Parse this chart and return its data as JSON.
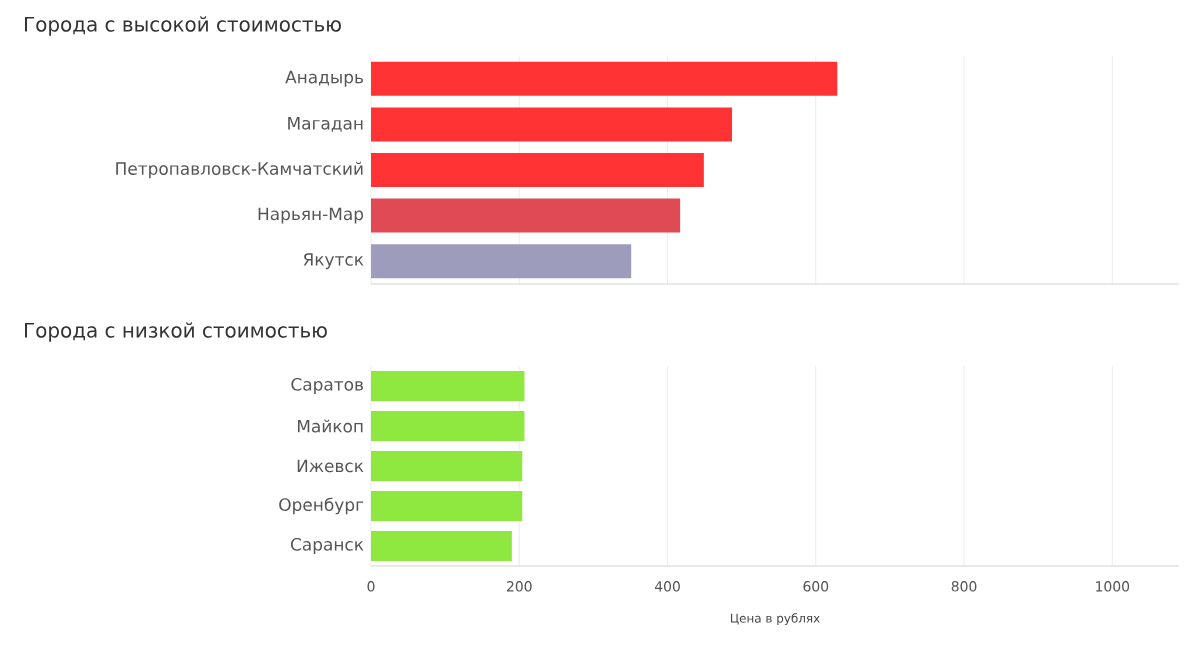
{
  "chart_data": [
    {
      "type": "bar",
      "title": "Города с высокой стоимостью",
      "orientation": "horizontal",
      "categories": [
        "Анадырь",
        "Магадан",
        "Петропавловск-Камчатский",
        "Нарьян-Мар",
        "Якутск"
      ],
      "values": [
        629,
        487,
        449,
        417,
        351
      ],
      "colors": [
        "#ff3333",
        "#ff3333",
        "#ff3333",
        "#e04a55",
        "#9e9cbd"
      ],
      "xlim": [
        0,
        1090
      ],
      "xticks": [
        0,
        200,
        400,
        600,
        800,
        1000
      ],
      "grid": "x",
      "tick_labels": "y"
    },
    {
      "type": "bar",
      "title": "Города с низкой стоимостью",
      "orientation": "horizontal",
      "xlabel": "Цена в рублях",
      "categories": [
        "Саратов",
        "Майкоп",
        "Ижевск",
        "Оренбург",
        "Саранск"
      ],
      "values": [
        207,
        207,
        204,
        204,
        190
      ],
      "colors": [
        "#8ee83f",
        "#8ee83f",
        "#8ee83f",
        "#8ee83f",
        "#8ee83f"
      ],
      "xlim": [
        0,
        1090
      ],
      "xticks": [
        0,
        200,
        400,
        600,
        800,
        1000
      ],
      "grid": "x"
    }
  ]
}
